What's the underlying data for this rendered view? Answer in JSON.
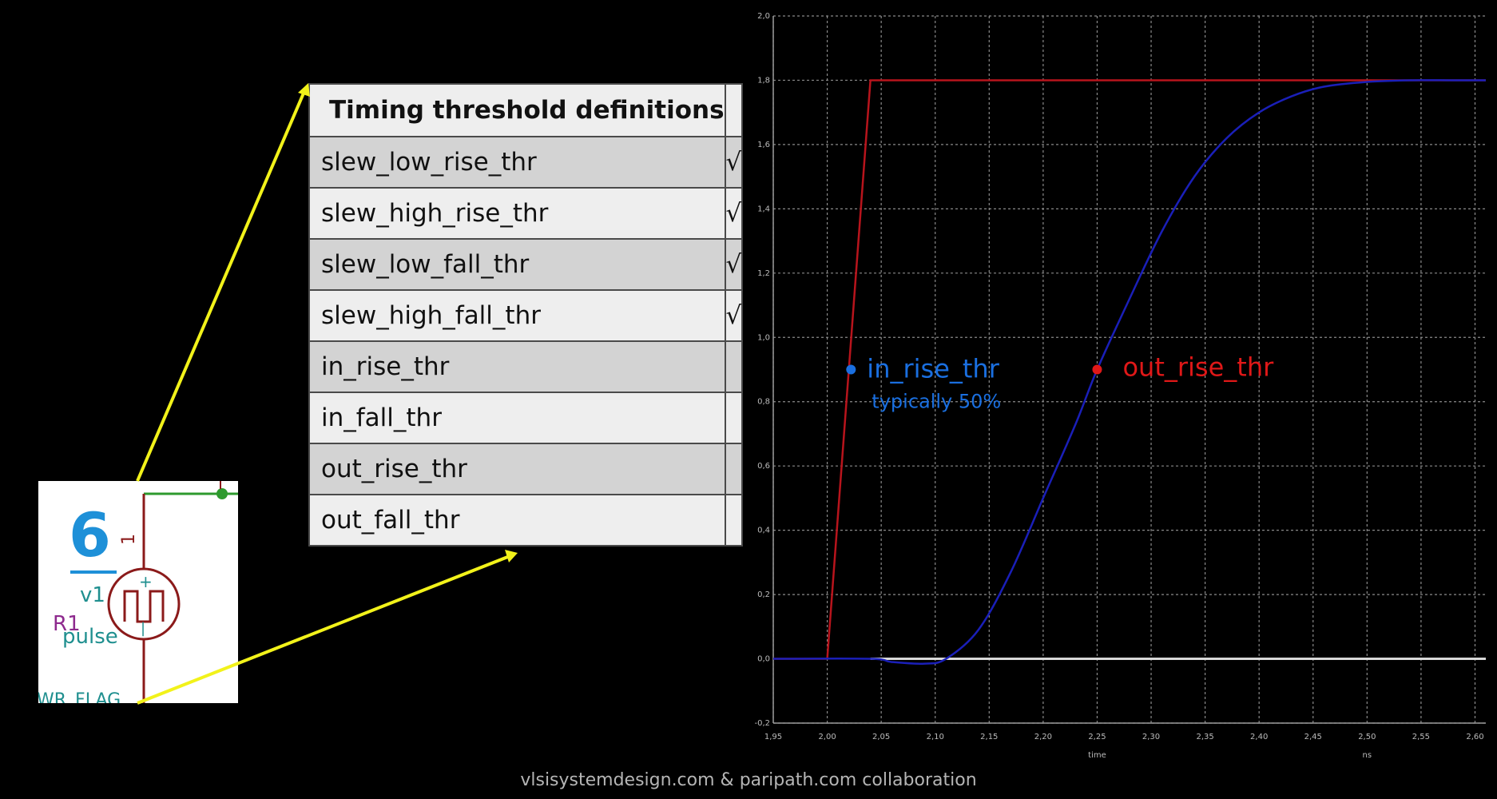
{
  "table": {
    "header": "Timing threshold definitions",
    "header_col2": "",
    "rows": [
      {
        "label": "slew_low_rise_thr",
        "check": "√"
      },
      {
        "label": "slew_high_rise_thr",
        "check": "√"
      },
      {
        "label": "slew_low_fall_thr",
        "check": "√"
      },
      {
        "label": "slew_high_fall_thr",
        "check": "√"
      },
      {
        "label": "in_rise_thr",
        "check": ""
      },
      {
        "label": "in_fall_thr",
        "check": ""
      },
      {
        "label": "out_rise_thr",
        "check": ""
      },
      {
        "label": "out_fall_thr",
        "check": ""
      }
    ]
  },
  "schematic": {
    "number": "6",
    "source_name": "v1",
    "resistor_label": "R1",
    "source_type": "pulse",
    "flag_label": "WR_FLAG",
    "polarity_plus": "+",
    "polarity_minus": "|",
    "pin_label": "1"
  },
  "chart_data": {
    "type": "line",
    "title": "",
    "xlabel": "time",
    "x_unit": "ns",
    "ylabel": "",
    "xlim": [
      1.95,
      2.61
    ],
    "ylim": [
      -0.2,
      2.0
    ],
    "x_ticks": [
      "1,95",
      "2,00",
      "2,05",
      "2,10",
      "2,15",
      "2,20",
      "2,25",
      "2,30",
      "2,35",
      "2,40",
      "2,45",
      "2,50",
      "2,55",
      "2,60"
    ],
    "y_ticks": [
      "-0,2",
      "0,0",
      "0,2",
      "0,4",
      "0,6",
      "0,8",
      "1,0",
      "1,2",
      "1,4",
      "1,6",
      "1,8",
      "2,0"
    ],
    "grid": true,
    "series": [
      {
        "name": "",
        "color": "#b8141c",
        "x": [
          1.95,
          2.0,
          2.04,
          2.61
        ],
        "y": [
          0.0,
          0.0,
          1.8,
          1.8
        ]
      },
      {
        "name": "",
        "color": "#1a1fb8",
        "x": [
          1.95,
          2.04,
          2.06,
          2.09,
          2.11,
          2.14,
          2.17,
          2.2,
          2.23,
          2.25,
          2.28,
          2.31,
          2.34,
          2.37,
          2.4,
          2.43,
          2.46,
          2.5,
          2.54,
          2.58,
          2.61
        ],
        "y": [
          0.0,
          0.0,
          -0.01,
          -0.015,
          0.0,
          0.09,
          0.27,
          0.5,
          0.73,
          0.9,
          1.12,
          1.33,
          1.5,
          1.62,
          1.7,
          1.75,
          1.78,
          1.795,
          1.8,
          1.8,
          1.8
        ]
      },
      {
        "name": "",
        "color": "#d8d8d8",
        "x": [
          2.04,
          2.61
        ],
        "y": [
          0.0,
          0.0
        ]
      }
    ],
    "annotations": [
      {
        "text": "in_rise_thr",
        "note": "typically 50%",
        "x": 2.03,
        "y": 0.9,
        "color": "#1a6fe0"
      },
      {
        "text": "out_rise_thr",
        "x": 2.25,
        "y": 0.9,
        "color": "#e01818"
      }
    ]
  },
  "footer": "vlsisystemdesign.com & paripath.com collaboration"
}
